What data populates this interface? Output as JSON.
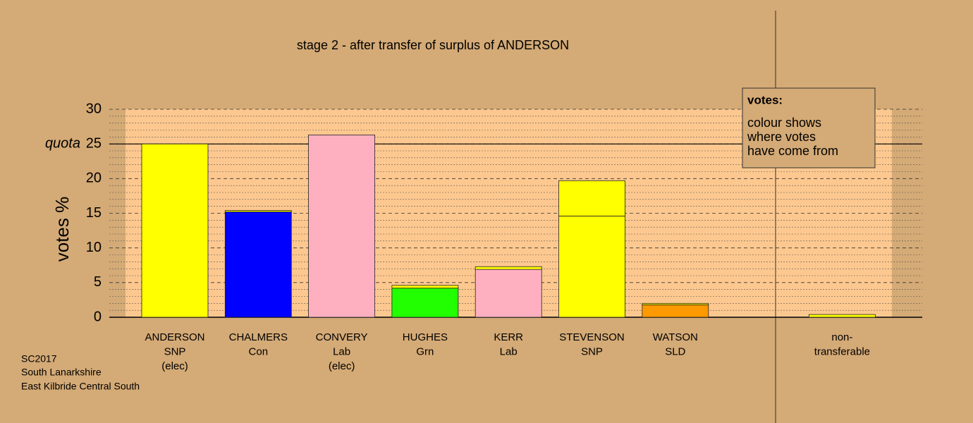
{
  "chart_data": {
    "type": "bar",
    "title": "stage 2 - after transfer of surplus of ANDERSON",
    "y_label": "votes %",
    "categories": [
      [
        "ANDERSON",
        "SNP",
        "(elec)"
      ],
      [
        "CHALMERS",
        "Con"
      ],
      [
        "CONVERY",
        "Lab",
        "(elec)"
      ],
      [
        "HUGHES",
        "Grn"
      ],
      [
        "KERR",
        "Lab"
      ],
      [
        "STEVENSON",
        "SNP"
      ],
      [
        "WATSON",
        "SLD"
      ],
      null,
      [
        "non-",
        "transferable"
      ]
    ],
    "series": [
      {
        "colors": [
          "#ffff00",
          "#0000ff",
          "#ffb0c0",
          "#22ff00",
          "#ffb0c0",
          "#ffff00",
          "#ff9900",
          null,
          null
        ],
        "values": [
          25,
          15.2,
          26.3,
          4.2,
          6.9,
          14.6,
          1.8,
          null,
          null
        ]
      },
      {
        "color": "#ffff00",
        "values": [
          null,
          0.2,
          null,
          0.4,
          0.4,
          5.1,
          0.2,
          null,
          0.4
        ]
      }
    ],
    "ylim": [
      0,
      30
    ],
    "yticks": [
      0,
      5,
      10,
      15,
      20,
      25,
      30
    ],
    "minor_yticks": [
      1,
      2,
      3,
      4,
      6,
      7,
      8,
      9,
      11,
      12,
      13,
      14,
      16,
      17,
      18,
      19,
      21,
      22,
      23,
      24,
      26,
      27,
      28,
      29
    ],
    "quota": {
      "value": 25,
      "label": "quota"
    },
    "legend": {
      "title": "votes:",
      "lines": [
        "colour shows",
        "where votes",
        "have come from"
      ]
    },
    "footer": [
      "SC2017",
      "South Lanarkshire",
      "East Kilbride Central South"
    ]
  }
}
